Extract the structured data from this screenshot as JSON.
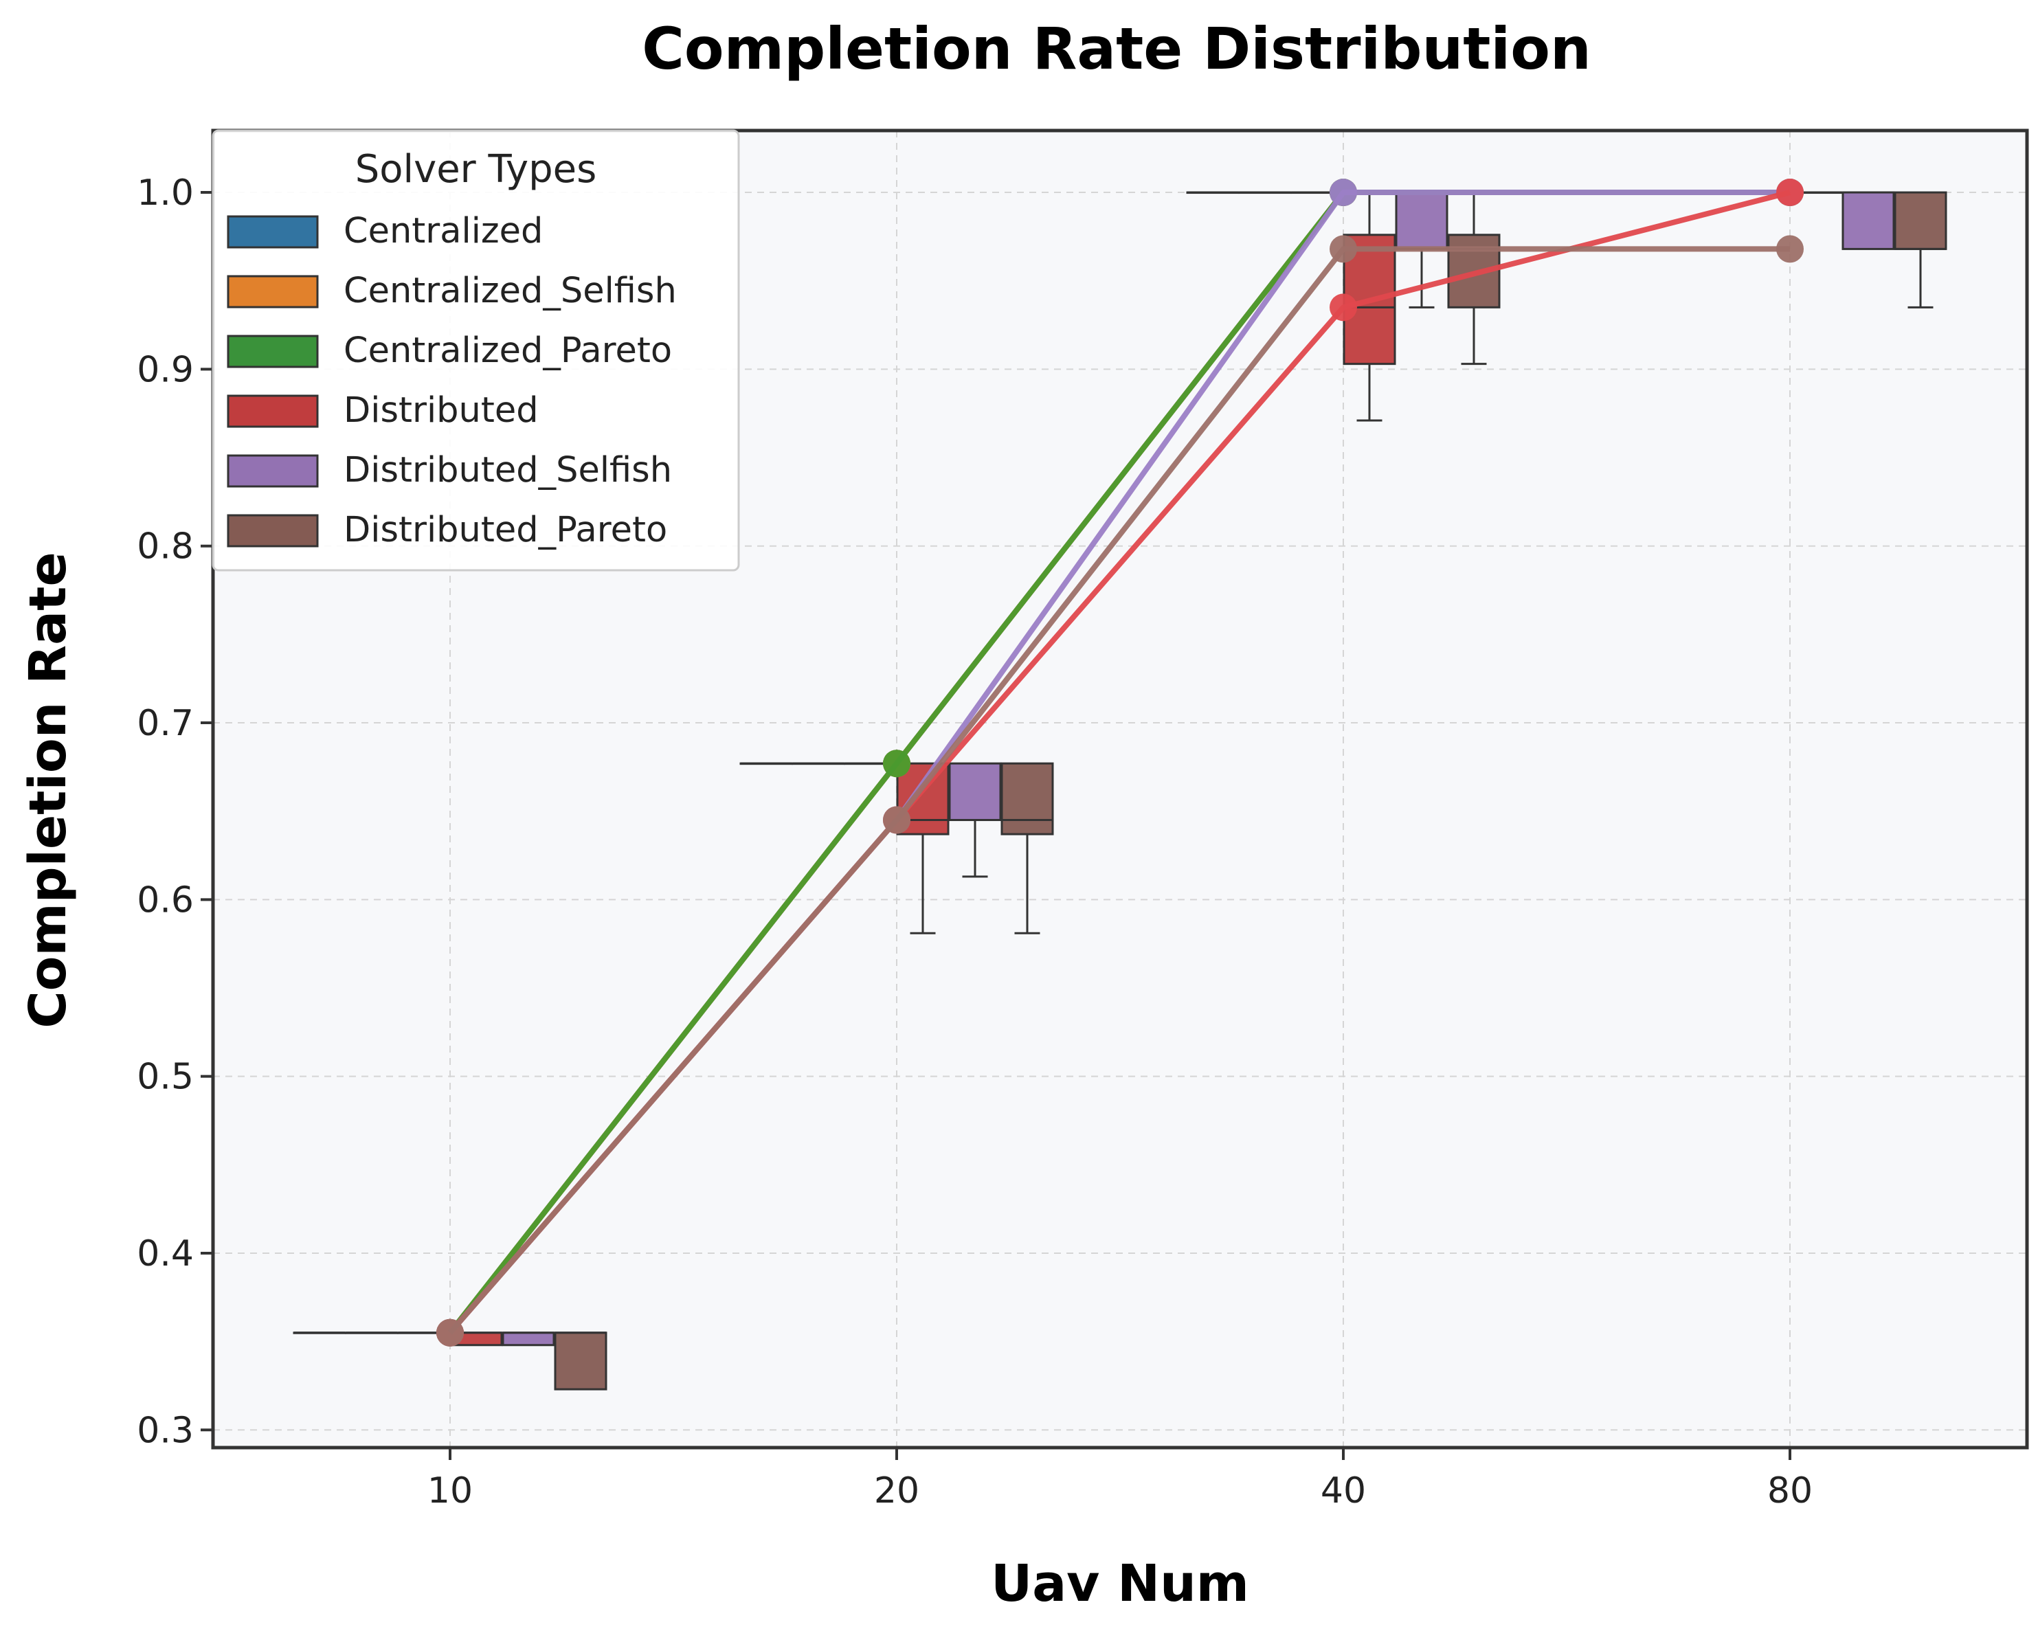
{
  "chart_data": {
    "type": "box",
    "title": "Completion Rate Distribution",
    "xlabel": "Uav Num",
    "ylabel": "Completion Rate",
    "categories": [
      "10",
      "20",
      "40",
      "80"
    ],
    "y_ticks": [
      "0.3",
      "0.4",
      "0.5",
      "0.6",
      "0.7",
      "0.8",
      "0.9",
      "1.0"
    ],
    "ylim": [
      0.29,
      1.035
    ],
    "grid": true,
    "legend": {
      "title": "Solver Types",
      "placement": "top-left",
      "entries": [
        "Centralized",
        "Centralized_Selfish",
        "Centralized_Pareto",
        "Distributed",
        "Distributed_Selfish",
        "Distributed_Pareto"
      ]
    },
    "colors": {
      "Centralized": "#3274a1",
      "Centralized_Selfish": "#e1812c",
      "Centralized_Pareto": "#3a923a",
      "Distributed": "#c03d3e",
      "Distributed_Selfish": "#9372b2",
      "Distributed_Pareto": "#845b53"
    },
    "boxes": [
      {
        "category": "10",
        "series": "Centralized",
        "min": 0.355,
        "q1": 0.355,
        "median": 0.355,
        "q3": 0.355,
        "max": 0.355
      },
      {
        "category": "10",
        "series": "Centralized_Selfish",
        "min": 0.355,
        "q1": 0.355,
        "median": 0.355,
        "q3": 0.355,
        "max": 0.355
      },
      {
        "category": "10",
        "series": "Centralized_Pareto",
        "min": 0.355,
        "q1": 0.355,
        "median": 0.355,
        "q3": 0.355,
        "max": 0.355
      },
      {
        "category": "10",
        "series": "Distributed",
        "min": 0.348,
        "q1": 0.348,
        "median": 0.355,
        "q3": 0.355,
        "max": 0.355
      },
      {
        "category": "10",
        "series": "Distributed_Selfish",
        "min": 0.348,
        "q1": 0.348,
        "median": 0.355,
        "q3": 0.355,
        "max": 0.355
      },
      {
        "category": "10",
        "series": "Distributed_Pareto",
        "min": 0.323,
        "q1": 0.323,
        "median": 0.355,
        "q3": 0.355,
        "max": 0.355
      },
      {
        "category": "20",
        "series": "Centralized",
        "min": 0.677,
        "q1": 0.677,
        "median": 0.677,
        "q3": 0.677,
        "max": 0.677
      },
      {
        "category": "20",
        "series": "Centralized_Selfish",
        "min": 0.677,
        "q1": 0.677,
        "median": 0.677,
        "q3": 0.677,
        "max": 0.677
      },
      {
        "category": "20",
        "series": "Centralized_Pareto",
        "min": 0.677,
        "q1": 0.677,
        "median": 0.677,
        "q3": 0.677,
        "max": 0.677
      },
      {
        "category": "20",
        "series": "Distributed",
        "min": 0.581,
        "q1": 0.637,
        "median": 0.645,
        "q3": 0.677,
        "max": 0.677
      },
      {
        "category": "20",
        "series": "Distributed_Selfish",
        "min": 0.613,
        "q1": 0.645,
        "median": 0.645,
        "q3": 0.677,
        "max": 0.677
      },
      {
        "category": "20",
        "series": "Distributed_Pareto",
        "min": 0.581,
        "q1": 0.637,
        "median": 0.645,
        "q3": 0.677,
        "max": 0.677
      },
      {
        "category": "40",
        "series": "Centralized",
        "min": 1.0,
        "q1": 1.0,
        "median": 1.0,
        "q3": 1.0,
        "max": 1.0
      },
      {
        "category": "40",
        "series": "Centralized_Selfish",
        "min": 1.0,
        "q1": 1.0,
        "median": 1.0,
        "q3": 1.0,
        "max": 1.0
      },
      {
        "category": "40",
        "series": "Centralized_Pareto",
        "min": 1.0,
        "q1": 1.0,
        "median": 1.0,
        "q3": 1.0,
        "max": 1.0
      },
      {
        "category": "40",
        "series": "Distributed",
        "min": 0.871,
        "q1": 0.903,
        "median": 0.935,
        "q3": 0.976,
        "max": 1.0
      },
      {
        "category": "40",
        "series": "Distributed_Selfish",
        "min": 0.935,
        "q1": 0.968,
        "median": 1.0,
        "q3": 1.0,
        "max": 1.0
      },
      {
        "category": "40",
        "series": "Distributed_Pareto",
        "min": 0.903,
        "q1": 0.935,
        "median": 0.968,
        "q3": 0.976,
        "max": 1.0
      },
      {
        "category": "80",
        "series": "Centralized",
        "min": 1.0,
        "q1": 1.0,
        "median": 1.0,
        "q3": 1.0,
        "max": 1.0
      },
      {
        "category": "80",
        "series": "Centralized_Selfish",
        "min": 1.0,
        "q1": 1.0,
        "median": 1.0,
        "q3": 1.0,
        "max": 1.0
      },
      {
        "category": "80",
        "series": "Centralized_Pareto",
        "min": 1.0,
        "q1": 1.0,
        "median": 1.0,
        "q3": 1.0,
        "max": 1.0
      },
      {
        "category": "80",
        "series": "Distributed",
        "min": 1.0,
        "q1": 1.0,
        "median": 1.0,
        "q3": 1.0,
        "max": 1.0
      },
      {
        "category": "80",
        "series": "Distributed_Selfish",
        "min": 0.968,
        "q1": 0.968,
        "median": 1.0,
        "q3": 1.0,
        "max": 1.0
      },
      {
        "category": "80",
        "series": "Distributed_Pareto",
        "min": 0.935,
        "q1": 0.968,
        "median": 0.968,
        "q3": 1.0,
        "max": 1.0
      }
    ],
    "mean_lines": [
      {
        "name": "Centralized",
        "values": [
          0.355,
          0.677,
          1.0,
          1.0
        ]
      },
      {
        "name": "Centralized_Selfish",
        "values": [
          0.355,
          0.677,
          1.0,
          1.0
        ]
      },
      {
        "name": "Centralized_Pareto",
        "values": [
          0.355,
          0.677,
          1.0,
          1.0
        ]
      },
      {
        "name": "Distributed_Selfish",
        "values": [
          0.355,
          0.645,
          1.0,
          1.0
        ]
      },
      {
        "name": "Distributed",
        "values": [
          0.355,
          0.645,
          0.935,
          1.0
        ]
      },
      {
        "name": "Distributed_Pareto",
        "values": [
          0.355,
          0.645,
          0.968,
          0.968
        ]
      }
    ]
  }
}
